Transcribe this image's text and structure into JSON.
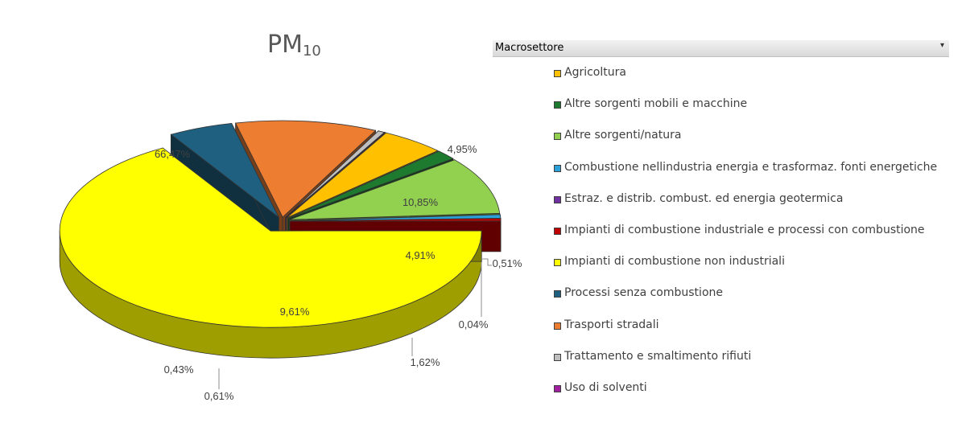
{
  "title_main": "PM",
  "title_sub": "10",
  "filter": {
    "label": "Macrosettore",
    "arrow": "▾"
  },
  "chart_data": {
    "type": "pie",
    "title": "PM10",
    "legend_position": "right",
    "slices": [
      {
        "name": "Agricoltura",
        "value": 4.91,
        "label": "4,91%",
        "color": "#FFC000"
      },
      {
        "name": "Altre sorgenti mobili e macchine",
        "value": 1.62,
        "label": "1,62%",
        "color": "#1E7A2E"
      },
      {
        "name": "Altre sorgenti/natura",
        "value": 9.61,
        "label": "9,61%",
        "color": "#92D050"
      },
      {
        "name": "Combustione nellindustria energia e trasformaz. fonti energetiche",
        "value": 0.61,
        "label": "0,61%",
        "color": "#2CA0D8"
      },
      {
        "name": "Estraz. e distrib. combust. ed energia geotermica",
        "value": 0.0,
        "label": "",
        "color": "#7030A0"
      },
      {
        "name": "Impianti di combustione industriale e processi con combustione",
        "value": 0.43,
        "label": "0,43%",
        "color": "#C00000"
      },
      {
        "name": "Impianti di combustione non industriali",
        "value": 66.47,
        "label": "66,47%",
        "color": "#FFFF00"
      },
      {
        "name": "Processi senza combustione",
        "value": 4.95,
        "label": "4,95%",
        "color": "#1F5F7F"
      },
      {
        "name": "Trasporti stradali",
        "value": 10.85,
        "label": "10,85%",
        "color": "#ED7D31"
      },
      {
        "name": "Trattamento e smaltimento rifiuti",
        "value": 0.51,
        "label": "0,51%",
        "color": "#BFBFBF"
      },
      {
        "name": "Uso di solventi",
        "value": 0.04,
        "label": "0,04%",
        "color": "#A020A0"
      }
    ]
  }
}
